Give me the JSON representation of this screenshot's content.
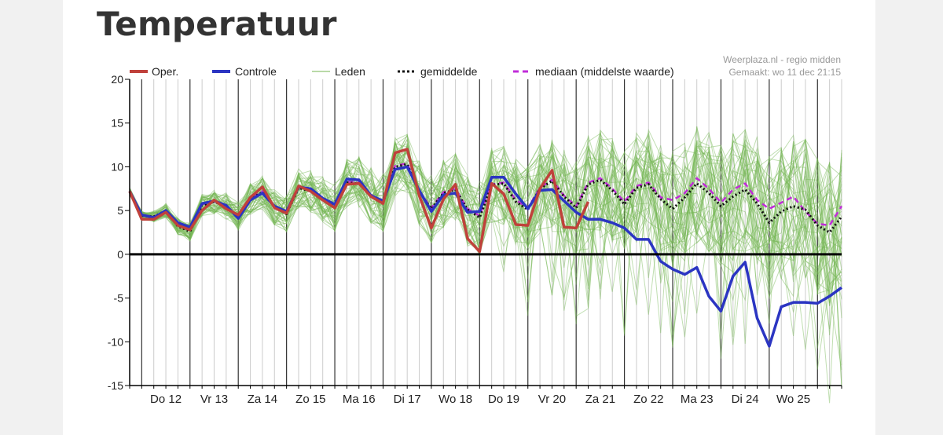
{
  "page": {
    "title": "Temperatuur"
  },
  "credit": {
    "line1": "Weerplaza.nl - regio midden",
    "line2": "Gemaakt: wo 11 dec 21:15"
  },
  "colors": {
    "oper": "#c0413b",
    "controle": "#2b35c2",
    "leden": "#74b552",
    "gemiddelde": "#111111",
    "mediaan": "#c02cd8",
    "grid": "#cccccc",
    "day_line": "#333333"
  },
  "chart_data": {
    "type": "line",
    "title": "",
    "xlabel": "",
    "ylabel": "",
    "ylim": [
      -15,
      20
    ],
    "yticks": [
      20,
      15,
      10,
      5,
      0,
      -5,
      -10,
      -15
    ],
    "x_unit": "6-hour steps from start of Wed 11 Dec 18:00",
    "xlim": [
      0,
      59
    ],
    "day_labels": [
      "Do 12",
      "Vr 13",
      "Za 14",
      "Zo 15",
      "Ma 16",
      "Di 17",
      "Wo 18",
      "Do 19",
      "Vr 20",
      "Za 21",
      "Zo 22",
      "Ma 23",
      "Di 24",
      "Wo 25"
    ],
    "legend_placement": "top",
    "legend": [
      {
        "label": "Oper.",
        "style": "thick-red"
      },
      {
        "label": "Controle",
        "style": "thick-blue"
      },
      {
        "label": "Leden",
        "style": "thin-green"
      },
      {
        "label": "gemiddelde",
        "style": "dotted-black"
      },
      {
        "label": "mediaan (middelste waarde)",
        "style": "dashed-magenta"
      }
    ],
    "series": [
      {
        "name": "Oper.",
        "x": [
          0,
          1,
          2,
          3,
          4,
          5,
          6,
          7,
          8,
          9,
          10,
          11,
          12,
          13,
          14,
          15,
          16,
          17,
          18,
          19,
          20,
          21,
          22,
          23,
          24,
          25,
          26,
          27,
          28,
          29,
          30,
          31,
          32,
          33,
          34,
          35,
          36,
          37,
          38,
          39
        ],
        "values": [
          7.2,
          4.0,
          4.0,
          4.8,
          3.3,
          2.8,
          5.0,
          6.2,
          5.2,
          4.5,
          6.5,
          7.7,
          5.3,
          4.7,
          7.8,
          7.2,
          6.2,
          5.3,
          8.0,
          8.1,
          6.6,
          5.8,
          11.6,
          12.0,
          6.7,
          3.0,
          6.3,
          8.0,
          1.8,
          0.3,
          8.1,
          6.9,
          3.4,
          3.3,
          7.5,
          9.6,
          3.1,
          3.0,
          6.0,
          null
        ]
      },
      {
        "name": "Controle",
        "x": [
          0,
          1,
          2,
          3,
          4,
          5,
          6,
          7,
          8,
          9,
          10,
          11,
          12,
          13,
          14,
          15,
          16,
          17,
          18,
          19,
          20,
          21,
          22,
          23,
          24,
          25,
          26,
          27,
          28,
          29,
          30,
          31,
          32,
          33,
          34,
          35,
          36,
          37,
          38,
          39,
          40,
          41,
          42,
          43,
          44,
          45,
          46,
          47,
          48,
          49,
          50,
          51,
          52,
          53,
          54,
          55,
          56,
          57,
          58,
          59
        ],
        "values": [
          7.2,
          4.5,
          4.2,
          5.0,
          3.6,
          3.1,
          5.8,
          6.1,
          5.6,
          4.1,
          6.2,
          7.0,
          5.5,
          4.9,
          7.7,
          7.5,
          6.4,
          5.7,
          8.6,
          8.5,
          6.7,
          6.1,
          9.7,
          10.0,
          7.3,
          4.9,
          6.8,
          7.0,
          4.8,
          4.9,
          8.8,
          8.8,
          6.9,
          5.2,
          7.3,
          7.4,
          6.1,
          4.8,
          4.0,
          4.0,
          3.6,
          3.0,
          1.7,
          1.7,
          -0.8,
          -1.7,
          -2.3,
          -1.5,
          -4.8,
          -6.5,
          -2.5,
          -0.9,
          -7.3,
          -10.5,
          -6.0,
          -5.5,
          -5.5,
          -5.6,
          -4.8,
          -3.8
        ]
      },
      {
        "name": "gemiddelde",
        "x": [
          0,
          1,
          2,
          3,
          4,
          5,
          6,
          7,
          8,
          9,
          10,
          11,
          12,
          13,
          14,
          15,
          16,
          17,
          18,
          19,
          20,
          21,
          22,
          23,
          24,
          25,
          26,
          27,
          28,
          29,
          30,
          31,
          32,
          33,
          34,
          35,
          36,
          37,
          38,
          39,
          40,
          41,
          42,
          43,
          44,
          45,
          46,
          47,
          48,
          49,
          50,
          51,
          52,
          53,
          54,
          55,
          56,
          57,
          58,
          59
        ],
        "values": [
          7.2,
          4.4,
          4.3,
          5.0,
          3.2,
          2.6,
          5.6,
          6.0,
          5.5,
          4.3,
          6.3,
          7.1,
          5.4,
          4.6,
          7.6,
          7.2,
          6.3,
          5.4,
          8.2,
          8.1,
          6.7,
          5.9,
          10.0,
          10.3,
          7.1,
          5.2,
          7.0,
          7.4,
          5.1,
          4.2,
          7.9,
          8.1,
          6.0,
          5.1,
          7.5,
          8.4,
          6.6,
          5.3,
          8.0,
          8.5,
          7.3,
          5.7,
          7.6,
          8.0,
          6.3,
          5.2,
          6.5,
          8.1,
          7.0,
          5.5,
          6.6,
          7.4,
          5.8,
          3.6,
          4.9,
          5.5,
          5.1,
          3.3,
          2.5,
          4.3
        ]
      },
      {
        "name": "mediaan (middelste waarde)",
        "x": [
          0,
          1,
          2,
          3,
          4,
          5,
          6,
          7,
          8,
          9,
          10,
          11,
          12,
          13,
          14,
          15,
          16,
          17,
          18,
          19,
          20,
          21,
          22,
          23,
          24,
          25,
          26,
          27,
          28,
          29,
          30,
          31,
          32,
          33,
          34,
          35,
          36,
          37,
          38,
          39,
          40,
          41,
          42,
          43,
          44,
          45,
          46,
          47,
          48,
          49,
          50,
          51,
          52,
          53,
          54,
          55,
          56,
          57,
          58,
          59
        ],
        "values": [
          7.2,
          4.5,
          4.3,
          5.0,
          3.3,
          2.7,
          5.7,
          6.1,
          5.5,
          4.4,
          6.4,
          7.2,
          5.5,
          4.8,
          7.7,
          7.3,
          6.3,
          5.5,
          8.3,
          8.2,
          6.8,
          6.0,
          10.1,
          10.4,
          7.2,
          5.3,
          7.1,
          7.5,
          5.2,
          4.4,
          8.0,
          8.2,
          6.2,
          5.3,
          7.6,
          8.5,
          6.7,
          5.5,
          8.2,
          8.7,
          7.5,
          6.0,
          7.8,
          8.2,
          6.5,
          6.2,
          7.0,
          8.7,
          7.5,
          5.9,
          7.4,
          8.1,
          6.2,
          5.2,
          5.9,
          6.6,
          4.9,
          3.5,
          3.3,
          5.5
        ]
      }
    ]
  }
}
